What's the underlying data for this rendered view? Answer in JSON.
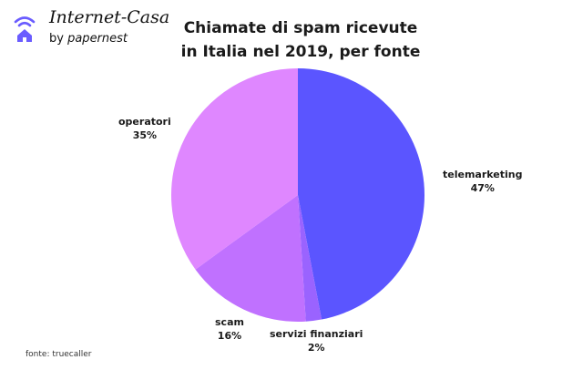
{
  "brand": {
    "title": "Internet-Casa",
    "sub_prefix": "by",
    "sub_brand": "papernest",
    "logo_icon": "wifi-house-icon",
    "logo_color": "#6a5cff"
  },
  "chart_data": {
    "type": "pie",
    "title": "Chiamate di spam ricevute in Italia nel 2019, per fonte",
    "slices": [
      {
        "label": "telemarketing",
        "value": 47,
        "value_label": "47%",
        "color": "#5b55ff"
      },
      {
        "label": "servizi finanziari",
        "value": 2,
        "value_label": "2%",
        "color": "#9a63ff"
      },
      {
        "label": "scam",
        "value": 16,
        "value_label": "16%",
        "color": "#c071ff"
      },
      {
        "label": "operatori",
        "value": 35,
        "value_label": "35%",
        "color": "#df87ff"
      }
    ]
  },
  "source": "fonte: truecaller"
}
